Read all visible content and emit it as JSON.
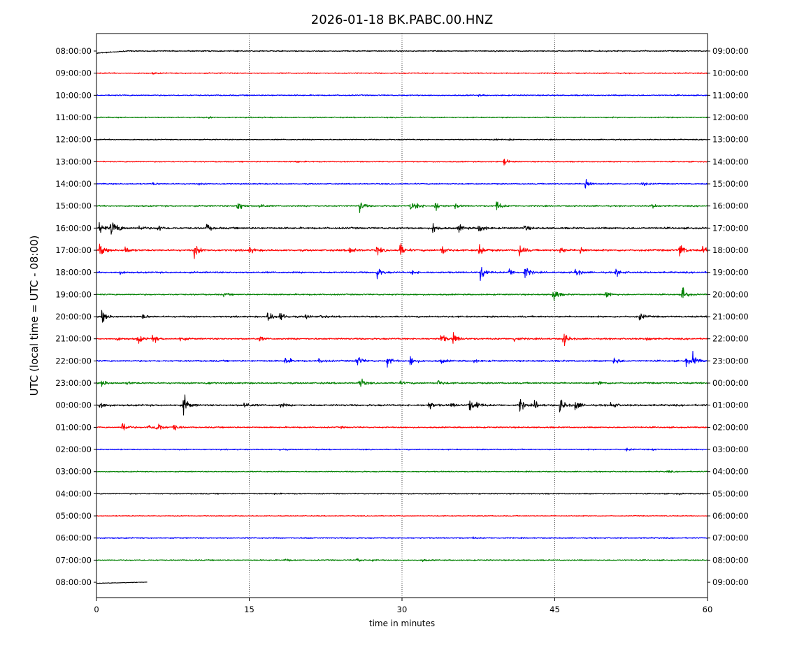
{
  "chart_data": {
    "type": "line",
    "title": "2026-01-18 BK.PABC.00.HNZ",
    "xlabel": "time in minutes",
    "ylabel": "UTC (local time = UTC - 08:00)",
    "xlim": [
      0,
      60
    ],
    "x_ticks": [
      "0",
      "15",
      "30",
      "45",
      "60"
    ],
    "x_tick_values": [
      0,
      15,
      30,
      45,
      60
    ],
    "vertical_grid": "dotted at 15, 30, 45",
    "left_row_labels": [
      "08:00:00",
      "09:00:00",
      "10:00:00",
      "11:00:00",
      "12:00:00",
      "13:00:00",
      "14:00:00",
      "15:00:00",
      "16:00:00",
      "17:00:00",
      "18:00:00",
      "19:00:00",
      "20:00:00",
      "21:00:00",
      "22:00:00",
      "23:00:00",
      "00:00:00",
      "01:00:00",
      "02:00:00",
      "03:00:00",
      "04:00:00",
      "05:00:00",
      "06:00:00",
      "07:00:00",
      "08:00:00"
    ],
    "right_row_labels": [
      "09:00:00",
      "10:00:00",
      "11:00:00",
      "12:00:00",
      "13:00:00",
      "14:00:00",
      "15:00:00",
      "16:00:00",
      "17:00:00",
      "18:00:00",
      "19:00:00",
      "20:00:00",
      "21:00:00",
      "22:00:00",
      "23:00:00",
      "00:00:00",
      "01:00:00",
      "02:00:00",
      "03:00:00",
      "04:00:00",
      "05:00:00",
      "06:00:00",
      "07:00:00",
      "08:00:00",
      "09:00:00"
    ],
    "trace_colors": [
      "#000000",
      "#ff0000",
      "#0000ff",
      "#008000"
    ],
    "traces": [
      {
        "row": 0,
        "end": 60,
        "noise": 1.2,
        "events": [
          [
            39,
            2
          ],
          [
            46,
            1.5
          ],
          [
            53.5,
            2
          ]
        ]
      },
      {
        "row": 1,
        "end": 60,
        "noise": 1.2,
        "events": [
          [
            5.5,
            2
          ]
        ]
      },
      {
        "row": 2,
        "end": 60,
        "noise": 1.3,
        "events": [
          [
            37.5,
            1.5
          ]
        ]
      },
      {
        "row": 3,
        "end": 60,
        "noise": 1.3,
        "events": [
          [
            11,
            1.5
          ]
        ]
      },
      {
        "row": 4,
        "end": 60,
        "noise": 1.1,
        "events": [
          [
            39,
            3
          ],
          [
            40.5,
            2
          ]
        ]
      },
      {
        "row": 5,
        "end": 60,
        "noise": 1.2,
        "events": [
          [
            19.5,
            3
          ],
          [
            40,
            9
          ]
        ]
      },
      {
        "row": 6,
        "end": 60,
        "noise": 1.3,
        "events": [
          [
            5.5,
            3
          ],
          [
            10,
            2
          ],
          [
            48,
            18
          ],
          [
            53.5,
            8
          ]
        ]
      },
      {
        "row": 7,
        "end": 60,
        "noise": 1.5,
        "events": [
          [
            13.8,
            20
          ],
          [
            16,
            8
          ],
          [
            25.8,
            18
          ],
          [
            30.8,
            14
          ],
          [
            31.5,
            6
          ],
          [
            33.2,
            16
          ],
          [
            35.2,
            6
          ],
          [
            39.2,
            16
          ],
          [
            54.5,
            6
          ]
        ]
      },
      {
        "row": 8,
        "end": 60,
        "noise": 2.0,
        "events": [
          [
            0.3,
            18
          ],
          [
            1.4,
            22
          ],
          [
            2,
            8
          ],
          [
            4.2,
            8
          ],
          [
            6,
            10
          ],
          [
            10.8,
            10
          ],
          [
            33,
            14
          ],
          [
            35.5,
            12
          ],
          [
            37.5,
            16
          ],
          [
            42,
            8
          ]
        ]
      },
      {
        "row": 9,
        "end": 60,
        "noise": 2.2,
        "events": [
          [
            0.3,
            18
          ],
          [
            2.8,
            10
          ],
          [
            9.6,
            18
          ],
          [
            15,
            8
          ],
          [
            24.8,
            12
          ],
          [
            27.5,
            12
          ],
          [
            29.8,
            18
          ],
          [
            33.8,
            16
          ],
          [
            37.5,
            20
          ],
          [
            41.5,
            18
          ],
          [
            45.5,
            8
          ],
          [
            47.5,
            10
          ],
          [
            57.2,
            22
          ],
          [
            59.5,
            10
          ]
        ]
      },
      {
        "row": 10,
        "end": 60,
        "noise": 1.8,
        "events": [
          [
            2.2,
            4
          ],
          [
            27.5,
            16
          ],
          [
            31,
            6
          ],
          [
            37.7,
            22
          ],
          [
            40.5,
            10
          ],
          [
            42,
            20
          ],
          [
            47,
            14
          ],
          [
            51,
            12
          ]
        ]
      },
      {
        "row": 11,
        "end": 60,
        "noise": 1.6,
        "events": [
          [
            12.5,
            4
          ],
          [
            44.8,
            22
          ],
          [
            50,
            12
          ],
          [
            57.5,
            20
          ]
        ]
      },
      {
        "row": 12,
        "end": 60,
        "noise": 1.8,
        "events": [
          [
            0.5,
            18
          ],
          [
            4.5,
            6
          ],
          [
            16.8,
            18
          ],
          [
            18,
            14
          ],
          [
            20.5,
            6
          ],
          [
            22,
            4
          ],
          [
            53.3,
            10
          ]
        ]
      },
      {
        "row": 13,
        "end": 60,
        "noise": 1.8,
        "events": [
          [
            2,
            4
          ],
          [
            4,
            14
          ],
          [
            5.5,
            12
          ],
          [
            8.2,
            6
          ],
          [
            16,
            6
          ],
          [
            33.8,
            14
          ],
          [
            35,
            18
          ],
          [
            41,
            8
          ],
          [
            45.8,
            20
          ],
          [
            54,
            6
          ]
        ]
      },
      {
        "row": 14,
        "end": 60,
        "noise": 1.8,
        "events": [
          [
            18.5,
            14
          ],
          [
            21.8,
            8
          ],
          [
            25.5,
            18
          ],
          [
            28.5,
            14
          ],
          [
            30.8,
            14
          ],
          [
            33.8,
            6
          ],
          [
            37,
            4
          ],
          [
            50.8,
            12
          ],
          [
            57.8,
            14
          ],
          [
            58.5,
            18
          ]
        ]
      },
      {
        "row": 15,
        "end": 60,
        "noise": 1.8,
        "events": [
          [
            0.5,
            10
          ],
          [
            3,
            4
          ],
          [
            10.8,
            4
          ],
          [
            25.8,
            16
          ],
          [
            29.8,
            4
          ],
          [
            33.5,
            8
          ],
          [
            49.3,
            6
          ]
        ]
      },
      {
        "row": 16,
        "end": 60,
        "noise": 2.0,
        "events": [
          [
            0.3,
            14
          ],
          [
            8.5,
            30
          ],
          [
            14.5,
            10
          ],
          [
            18,
            6
          ],
          [
            32.5,
            16
          ],
          [
            34.8,
            6
          ],
          [
            36.5,
            18
          ],
          [
            37.2,
            10
          ],
          [
            41.5,
            18
          ],
          [
            43,
            10
          ],
          [
            45.5,
            20
          ],
          [
            47,
            14
          ],
          [
            50.5,
            10
          ]
        ]
      },
      {
        "row": 17,
        "end": 60,
        "noise": 1.5,
        "events": [
          [
            2.5,
            20
          ],
          [
            5,
            8
          ],
          [
            5.8,
            26
          ],
          [
            7.5,
            12
          ],
          [
            24,
            2
          ]
        ]
      },
      {
        "row": 18,
        "end": 60,
        "noise": 1.3,
        "events": [
          [
            18,
            2
          ],
          [
            52,
            4
          ],
          [
            54.5,
            2
          ]
        ]
      },
      {
        "row": 19,
        "end": 60,
        "noise": 1.2,
        "events": [
          [
            56,
            3
          ]
        ]
      },
      {
        "row": 20,
        "end": 60,
        "noise": 1.1,
        "events": [
          [
            17.5,
            2
          ],
          [
            57,
            2
          ]
        ]
      },
      {
        "row": 21,
        "end": 60,
        "noise": 1.0,
        "events": [
          [
            38,
            1
          ]
        ]
      },
      {
        "row": 22,
        "end": 60,
        "noise": 1.2,
        "events": [
          [
            20.5,
            2
          ],
          [
            37,
            2
          ]
        ]
      },
      {
        "row": 23,
        "end": 60,
        "noise": 1.3,
        "events": [
          [
            18.5,
            4
          ],
          [
            25.5,
            6
          ],
          [
            27,
            2
          ],
          [
            32,
            3
          ]
        ]
      },
      {
        "row": 24,
        "end": 5,
        "noise": 0.8,
        "events": []
      }
    ]
  }
}
